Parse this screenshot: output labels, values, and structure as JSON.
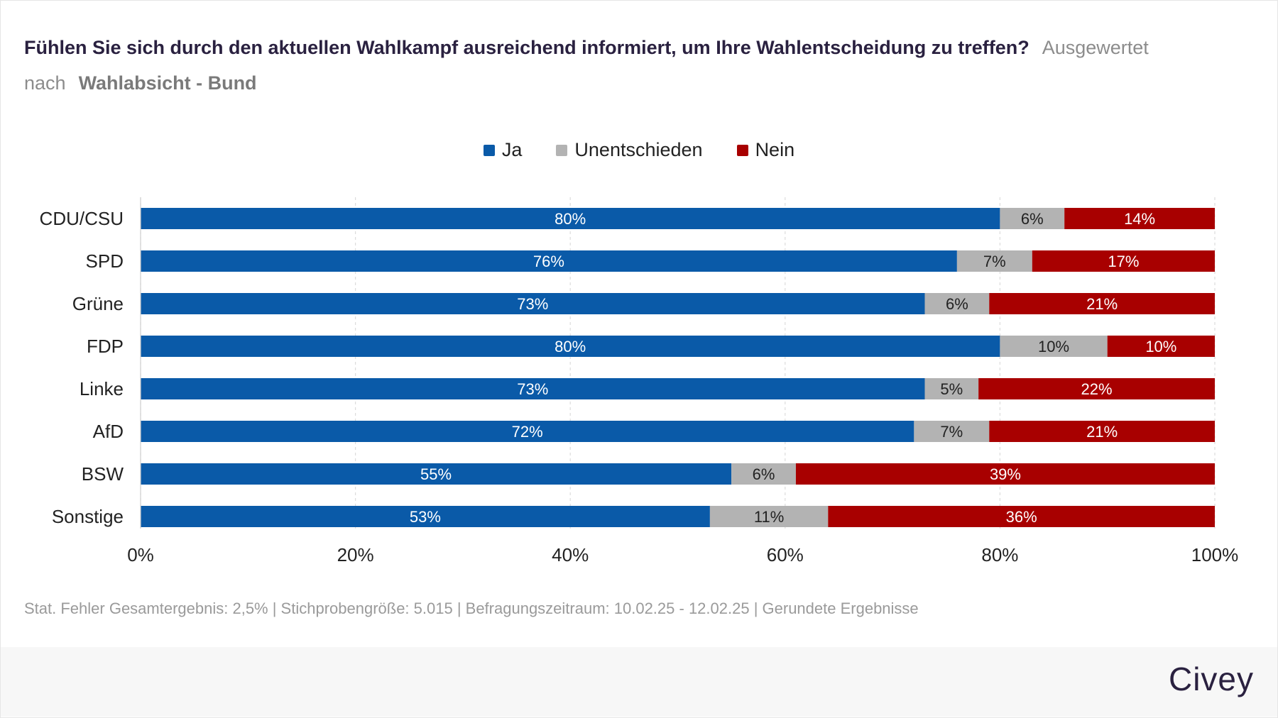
{
  "header": {
    "question": "Fühlen Sie sich durch den aktuellen Wahlkampf ausreichend informiert, um Ihre Wahlentscheidung zu treffen?",
    "evaluated_prefix": "Ausgewertet nach",
    "group": "Wahlabsicht - Bund"
  },
  "footer": {
    "note": "Stat. Fehler Gesamtergebnis: 2,5% | Stichprobengröße: 5.015 | Befragungszeitraum: 10.02.25 - 12.02.25 | Gerundete Ergebnisse",
    "brand": "Civey"
  },
  "colors": {
    "ja": "#0a5aa8",
    "unentschieden": "#b3b3b3",
    "nein": "#a80000"
  },
  "chart_data": {
    "type": "bar",
    "orientation": "horizontal",
    "stacked": true,
    "categories": [
      "CDU/CSU",
      "SPD",
      "Grüne",
      "FDP",
      "Linke",
      "AfD",
      "BSW",
      "Sonstige"
    ],
    "series": [
      {
        "name": "Ja",
        "color": "#0a5aa8",
        "values": [
          80,
          76,
          73,
          80,
          73,
          72,
          55,
          53
        ]
      },
      {
        "name": "Unentschieden",
        "color": "#b3b3b3",
        "values": [
          6,
          7,
          6,
          10,
          5,
          7,
          6,
          11
        ]
      },
      {
        "name": "Nein",
        "color": "#a80000",
        "values": [
          14,
          17,
          21,
          10,
          22,
          21,
          39,
          36
        ]
      }
    ],
    "xlim": [
      0,
      100
    ],
    "xticks": [
      "0%",
      "20%",
      "40%",
      "60%",
      "80%",
      "100%"
    ],
    "value_suffix": "%",
    "legend_position": "top-center",
    "grid": "vertical-dashed"
  }
}
